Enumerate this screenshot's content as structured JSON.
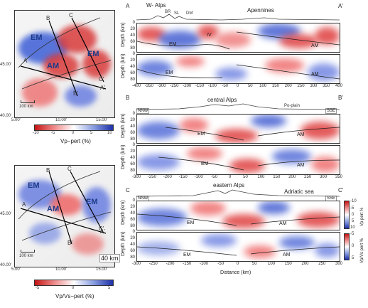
{
  "map1": {
    "labels": [
      "EM",
      "EM",
      "AM"
    ],
    "section_letters": [
      "A",
      "B",
      "C",
      "A'",
      "B'",
      "C'"
    ],
    "lat_ticks": [
      "45.00'",
      "40.00'"
    ],
    "lon_ticks": [
      "5.00'",
      "10.00'",
      "15.00'"
    ],
    "scale": "100 km",
    "colorbar_ticks": [
      "-10",
      "-5",
      "0",
      "5",
      "10"
    ],
    "colorbar_label": "Vp−pert (%)"
  },
  "map2": {
    "labels": [
      "EM",
      "EM",
      "AM"
    ],
    "section_letters": [
      "A",
      "B",
      "C",
      "A'",
      "B'",
      "C'"
    ],
    "lat_ticks": [
      "45.00'",
      "40.00'"
    ],
    "lon_ticks": [
      "5.00'",
      "10.00'",
      "15.00'"
    ],
    "scale": "100 km",
    "colorbar_ticks": [
      "-5",
      "0",
      "5"
    ],
    "colorbar_label": "Vp/Vs−pert (%)",
    "inset_label": "40 km"
  },
  "sectionA": {
    "corner_left": "A",
    "corner_right": "A'",
    "title_left": "W- Alps",
    "title_right": "Apennines",
    "topo_labels": [
      "BR",
      "SL",
      "DM"
    ],
    "labels_top": [
      "EM",
      "AM",
      "IV"
    ],
    "labels_bot": [
      "EM",
      "AM"
    ],
    "x_ticks": [
      "-400",
      "-350",
      "-300",
      "-250",
      "-200",
      "-150",
      "-100",
      "-50",
      "0",
      "50",
      "100",
      "150",
      "200",
      "250",
      "300",
      "350",
      "400"
    ]
  },
  "sectionB": {
    "corner_left": "B",
    "corner_right": "B'",
    "title": "central Alps",
    "subtitle": "Po-plain",
    "dir_left": "NNW",
    "dir_right": "SSE",
    "labels_top": [
      "EM",
      "AM"
    ],
    "labels_bot": [
      "EM",
      "AM"
    ],
    "x_ticks": [
      "-300",
      "-250",
      "-200",
      "-150",
      "-100",
      "-50",
      "0",
      "50",
      "100",
      "150",
      "200",
      "250",
      "300",
      "350"
    ]
  },
  "sectionC": {
    "corner_left": "C",
    "corner_right": "C'",
    "title": "eastern Alps",
    "subtitle": "Adriatic sea",
    "dir_left": "NNW",
    "dir_right": "SSE",
    "labels_top": [
      "EM",
      "AM"
    ],
    "labels_bot": [
      "EM",
      "AM"
    ],
    "x_ticks": [
      "-300",
      "-250",
      "-200",
      "-150",
      "-100",
      "-50",
      "0",
      "50",
      "100",
      "150",
      "200",
      "250",
      "300"
    ],
    "x_label": "Distance (km)"
  },
  "depth": {
    "label": "Depth (km)",
    "ticks": [
      "0",
      "20",
      "40",
      "60",
      "80"
    ]
  },
  "vbars": {
    "vp_ticks": [
      "-10",
      "-5",
      "0",
      "5",
      "10"
    ],
    "vp_label": "Vp pert %",
    "vpvs_ticks": [
      "-5",
      "0",
      "5"
    ],
    "vpvs_label": "Vp/Vs pert %"
  }
}
